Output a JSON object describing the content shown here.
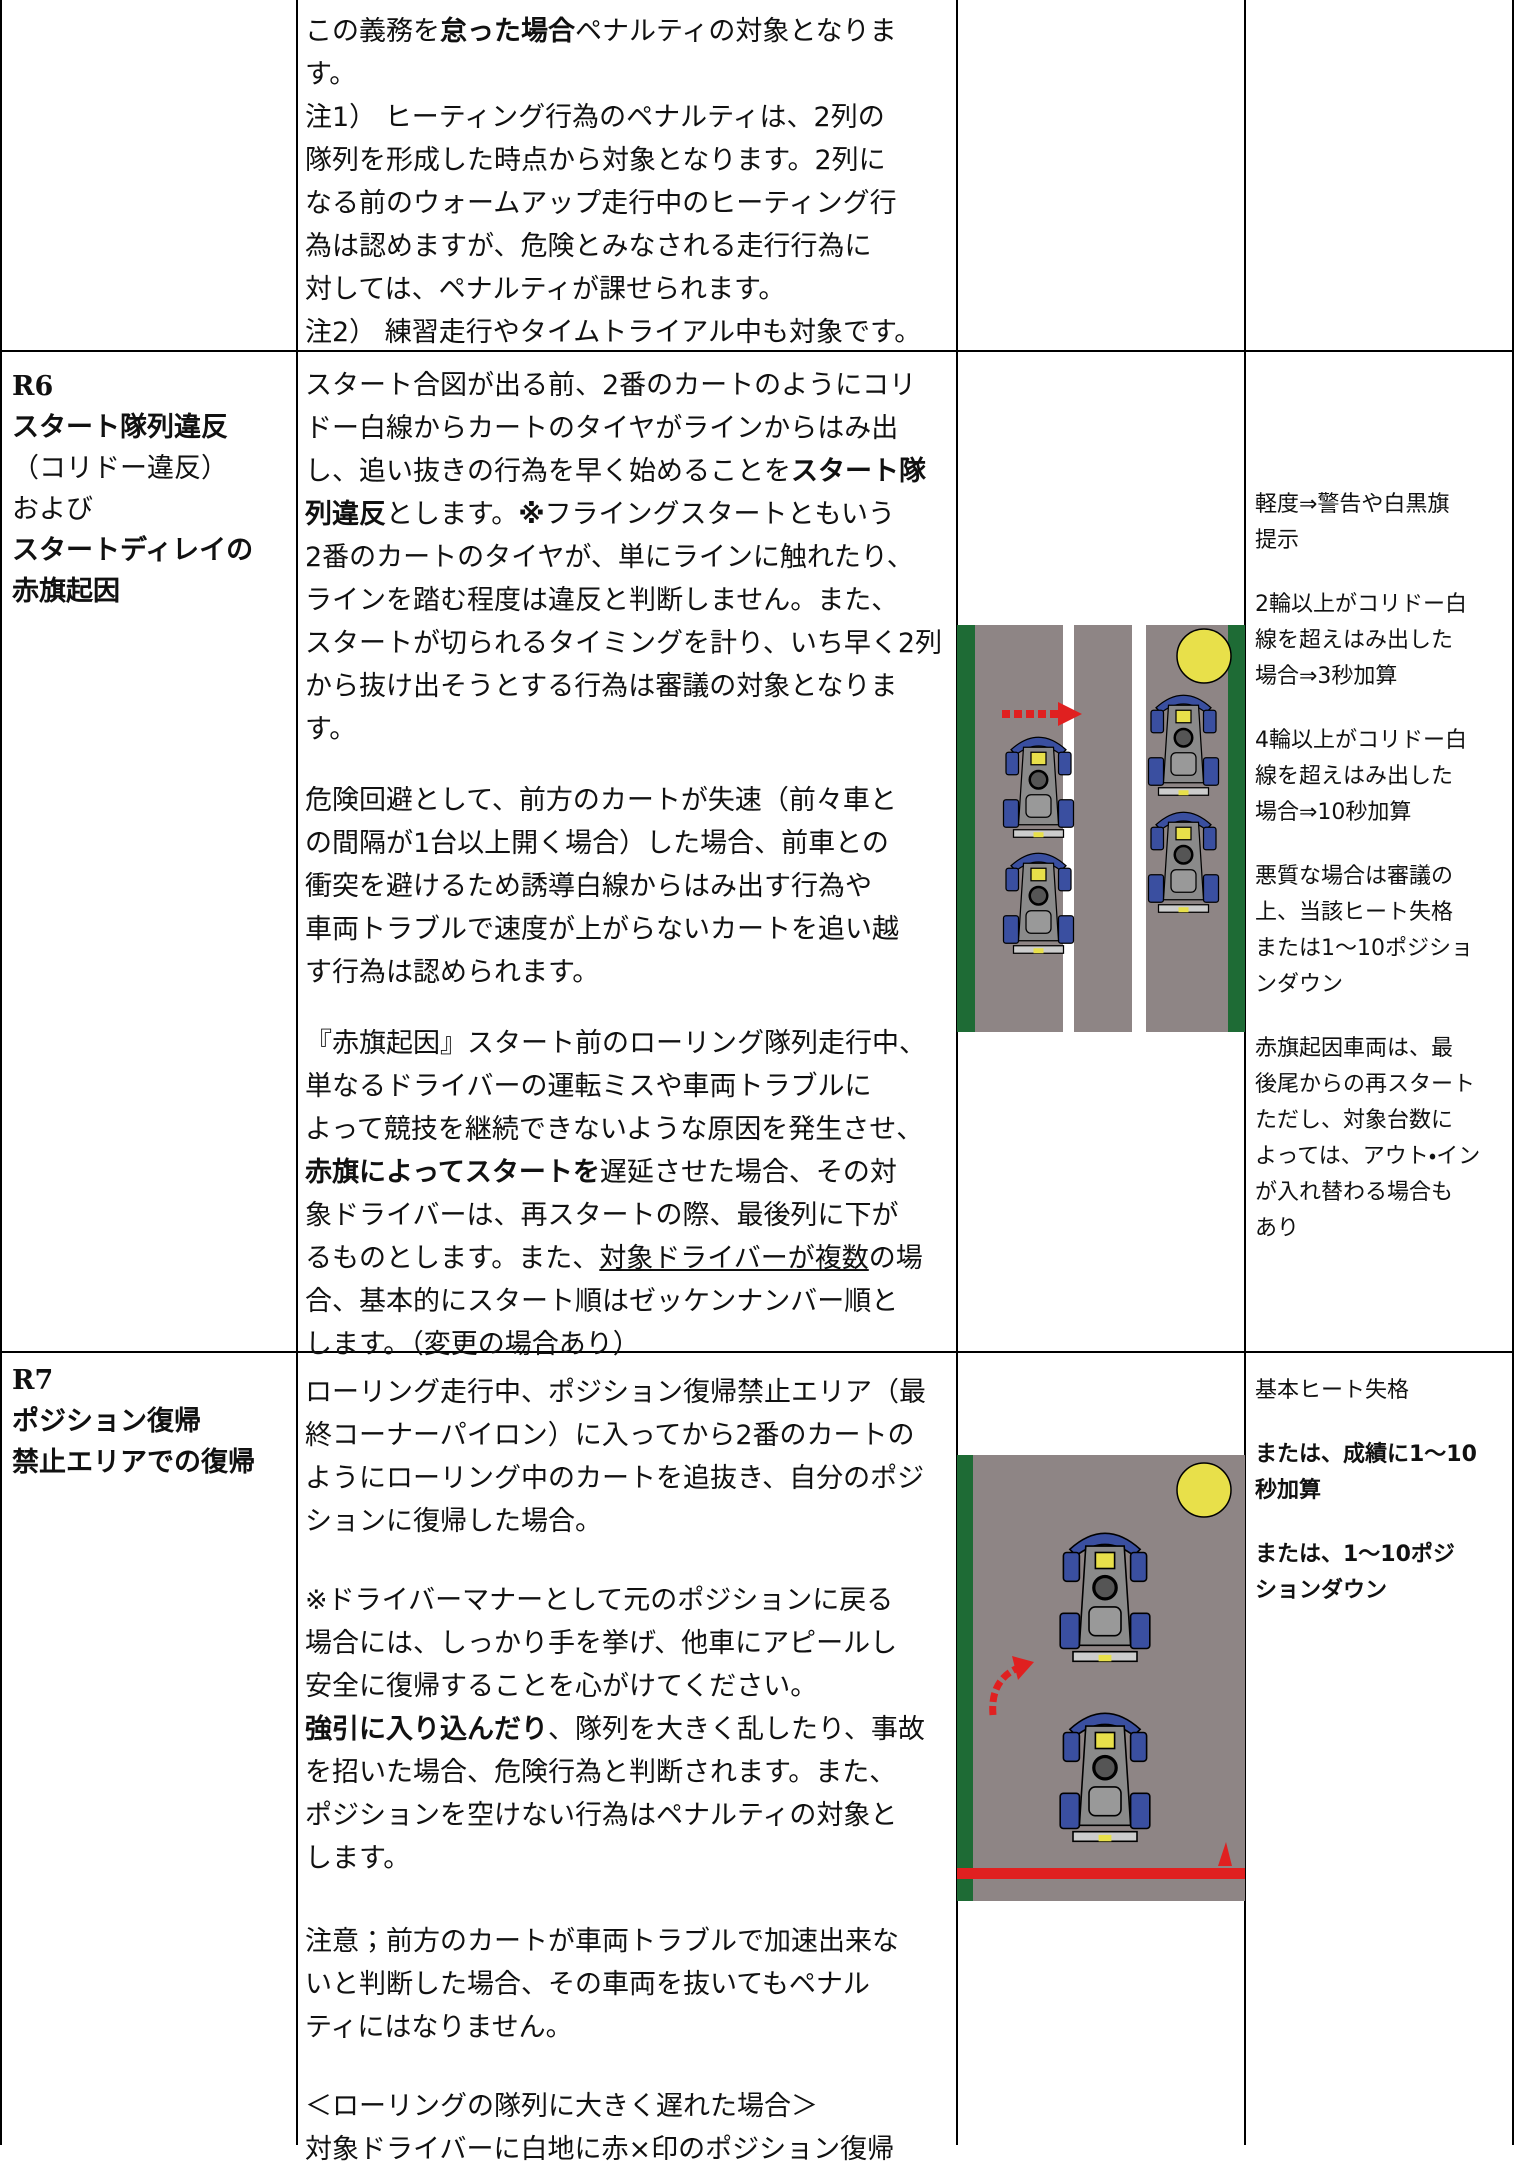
{
  "rows": [
    {
      "description": [
        [
          [
            "この義務を",
            "怠った場合",
            "ペナルティの対象となりま"
          ],
          [
            "す。"
          ],
          [
            "注1） ヒーティング行為のペナルティは、2列の"
          ],
          [
            "隊列を形成した時点から対象となります。2列に"
          ],
          [
            "なる前のウォームアップ走行中のヒーティング行"
          ],
          [
            "為は認めますが、危険とみなされる走行行為に"
          ],
          [
            "対しては、ペナルティが課せられます。"
          ],
          [
            "注2） 練習走行やタイムトライアル中も対象です。"
          ]
        ]
      ]
    },
    {
      "rule": [
        "R6",
        "スタート隊列違反",
        "（コリドー違反）",
        "および",
        "スタートディレイの",
        "赤旗起因"
      ],
      "description": [
        [
          [
            "スタート合図が出る前、2番のカートのようにコリ"
          ],
          [
            "ドー白線からカートのタイヤがラインからはみ出"
          ],
          [
            "し、追い抜きの行為を早く始めることを",
            "スタート隊"
          ],
          [
            "列違反",
            "とします。",
            "※",
            "フライングスタートともいう"
          ],
          [
            "2番のカートのタイヤが、単にラインに触れたり、"
          ],
          [
            "ラインを踏む程度は違反と判断しません。また、"
          ],
          [
            "スタートが切られるタイミングを計り、いち早く2列"
          ],
          [
            "から抜け出そうとする行為は審議の対象となりま"
          ],
          [
            "す。"
          ]
        ],
        [
          [
            "危険回避として、前方のカートが失速（前々車と"
          ],
          [
            "の間隔が1台以上開く場合）した場合、前車との"
          ],
          [
            "衝突を避けるため誘導白線からはみ出す行為や"
          ],
          [
            "車両トラブルで速度が上がらないカートを追い越"
          ],
          [
            "す行為は認められます。"
          ]
        ],
        [
          [
            "『赤旗起因』スタート前のローリング隊列走行中、"
          ],
          [
            "単なるドライバーの運転ミスや車両トラブルに"
          ],
          [
            "よって競技を継続できないような原因を発生させ、"
          ],
          [
            "赤旗によってスタートを",
            "遅延させた場合、その対"
          ],
          [
            "象ドライバーは、再スタートの際、最後列に下が"
          ],
          [
            "るものとします。また、",
            "対象ドライバーが複数",
            "の場"
          ],
          [
            "合、基本的にスタート順はゼッケンナンバー順と"
          ],
          [
            "します。（変更の場合あり）"
          ]
        ]
      ],
      "penalty": [
        [
          "軽度⇒警告や白黒旗",
          "提示"
        ],
        [
          "2輪以上がコリドー白",
          "線を超えはみ出した",
          "場合⇒3秒加算"
        ],
        [
          "4輪以上がコリドー白",
          "線を超えはみ出した",
          "場合⇒10秒加算"
        ],
        [
          "悪質な場合は審議の",
          "上、当該ヒート失格",
          "または1〜10ポジショ",
          "ンダウン"
        ],
        [
          "赤旗起因車両は、最",
          "後尾からの再スタート",
          "ただし、対象台数に",
          "よっては、アウト・イン",
          "が入れ替わる場合も",
          "あり"
        ]
      ]
    },
    {
      "rule": [
        "R7",
        "ポジション復帰",
        "禁止エリアでの復帰"
      ],
      "description": [
        [
          [
            "ローリング走行中、ポジション復帰禁止エリア（最"
          ],
          [
            "終コーナーパイロン）に入ってから2番のカートの"
          ],
          [
            "ようにローリング中のカートを追抜き、自分のポジ"
          ],
          [
            "ションに復帰した場合。"
          ]
        ],
        [
          [
            "※ドライバーマナーとして元のポジションに戻る"
          ],
          [
            "場合には、しっかり手を挙げ、他車にアピールし"
          ],
          [
            "安全に復帰することを心がけてください。"
          ],
          [
            "強引に入り込んだり",
            "、隊列を大きく乱したり、事故"
          ],
          [
            "を招いた場合、危険行為と判断されます。また、"
          ],
          [
            "ポジションを空けない行為はペナルティの対象と"
          ],
          [
            "します。"
          ]
        ],
        [
          [
            "注意；前方のカートが車両トラブルで加速出来な"
          ],
          [
            "いと判断した場合、その車両を抜いてもペナル"
          ],
          [
            "ティにはなりません。"
          ]
        ],
        [
          [
            "＜ローリングの隊列に大きく遅れた場合＞"
          ],
          [
            "対象ドライバーに白地に赤×印のポジション復帰"
          ]
        ]
      ],
      "penalty": [
        [
          "基本ヒート失格"
        ],
        [
          "または、成績に1〜10",
          "秒加算"
        ],
        [
          "または、1〜10ポジ",
          "ションダウン"
        ]
      ]
    }
  ]
}
